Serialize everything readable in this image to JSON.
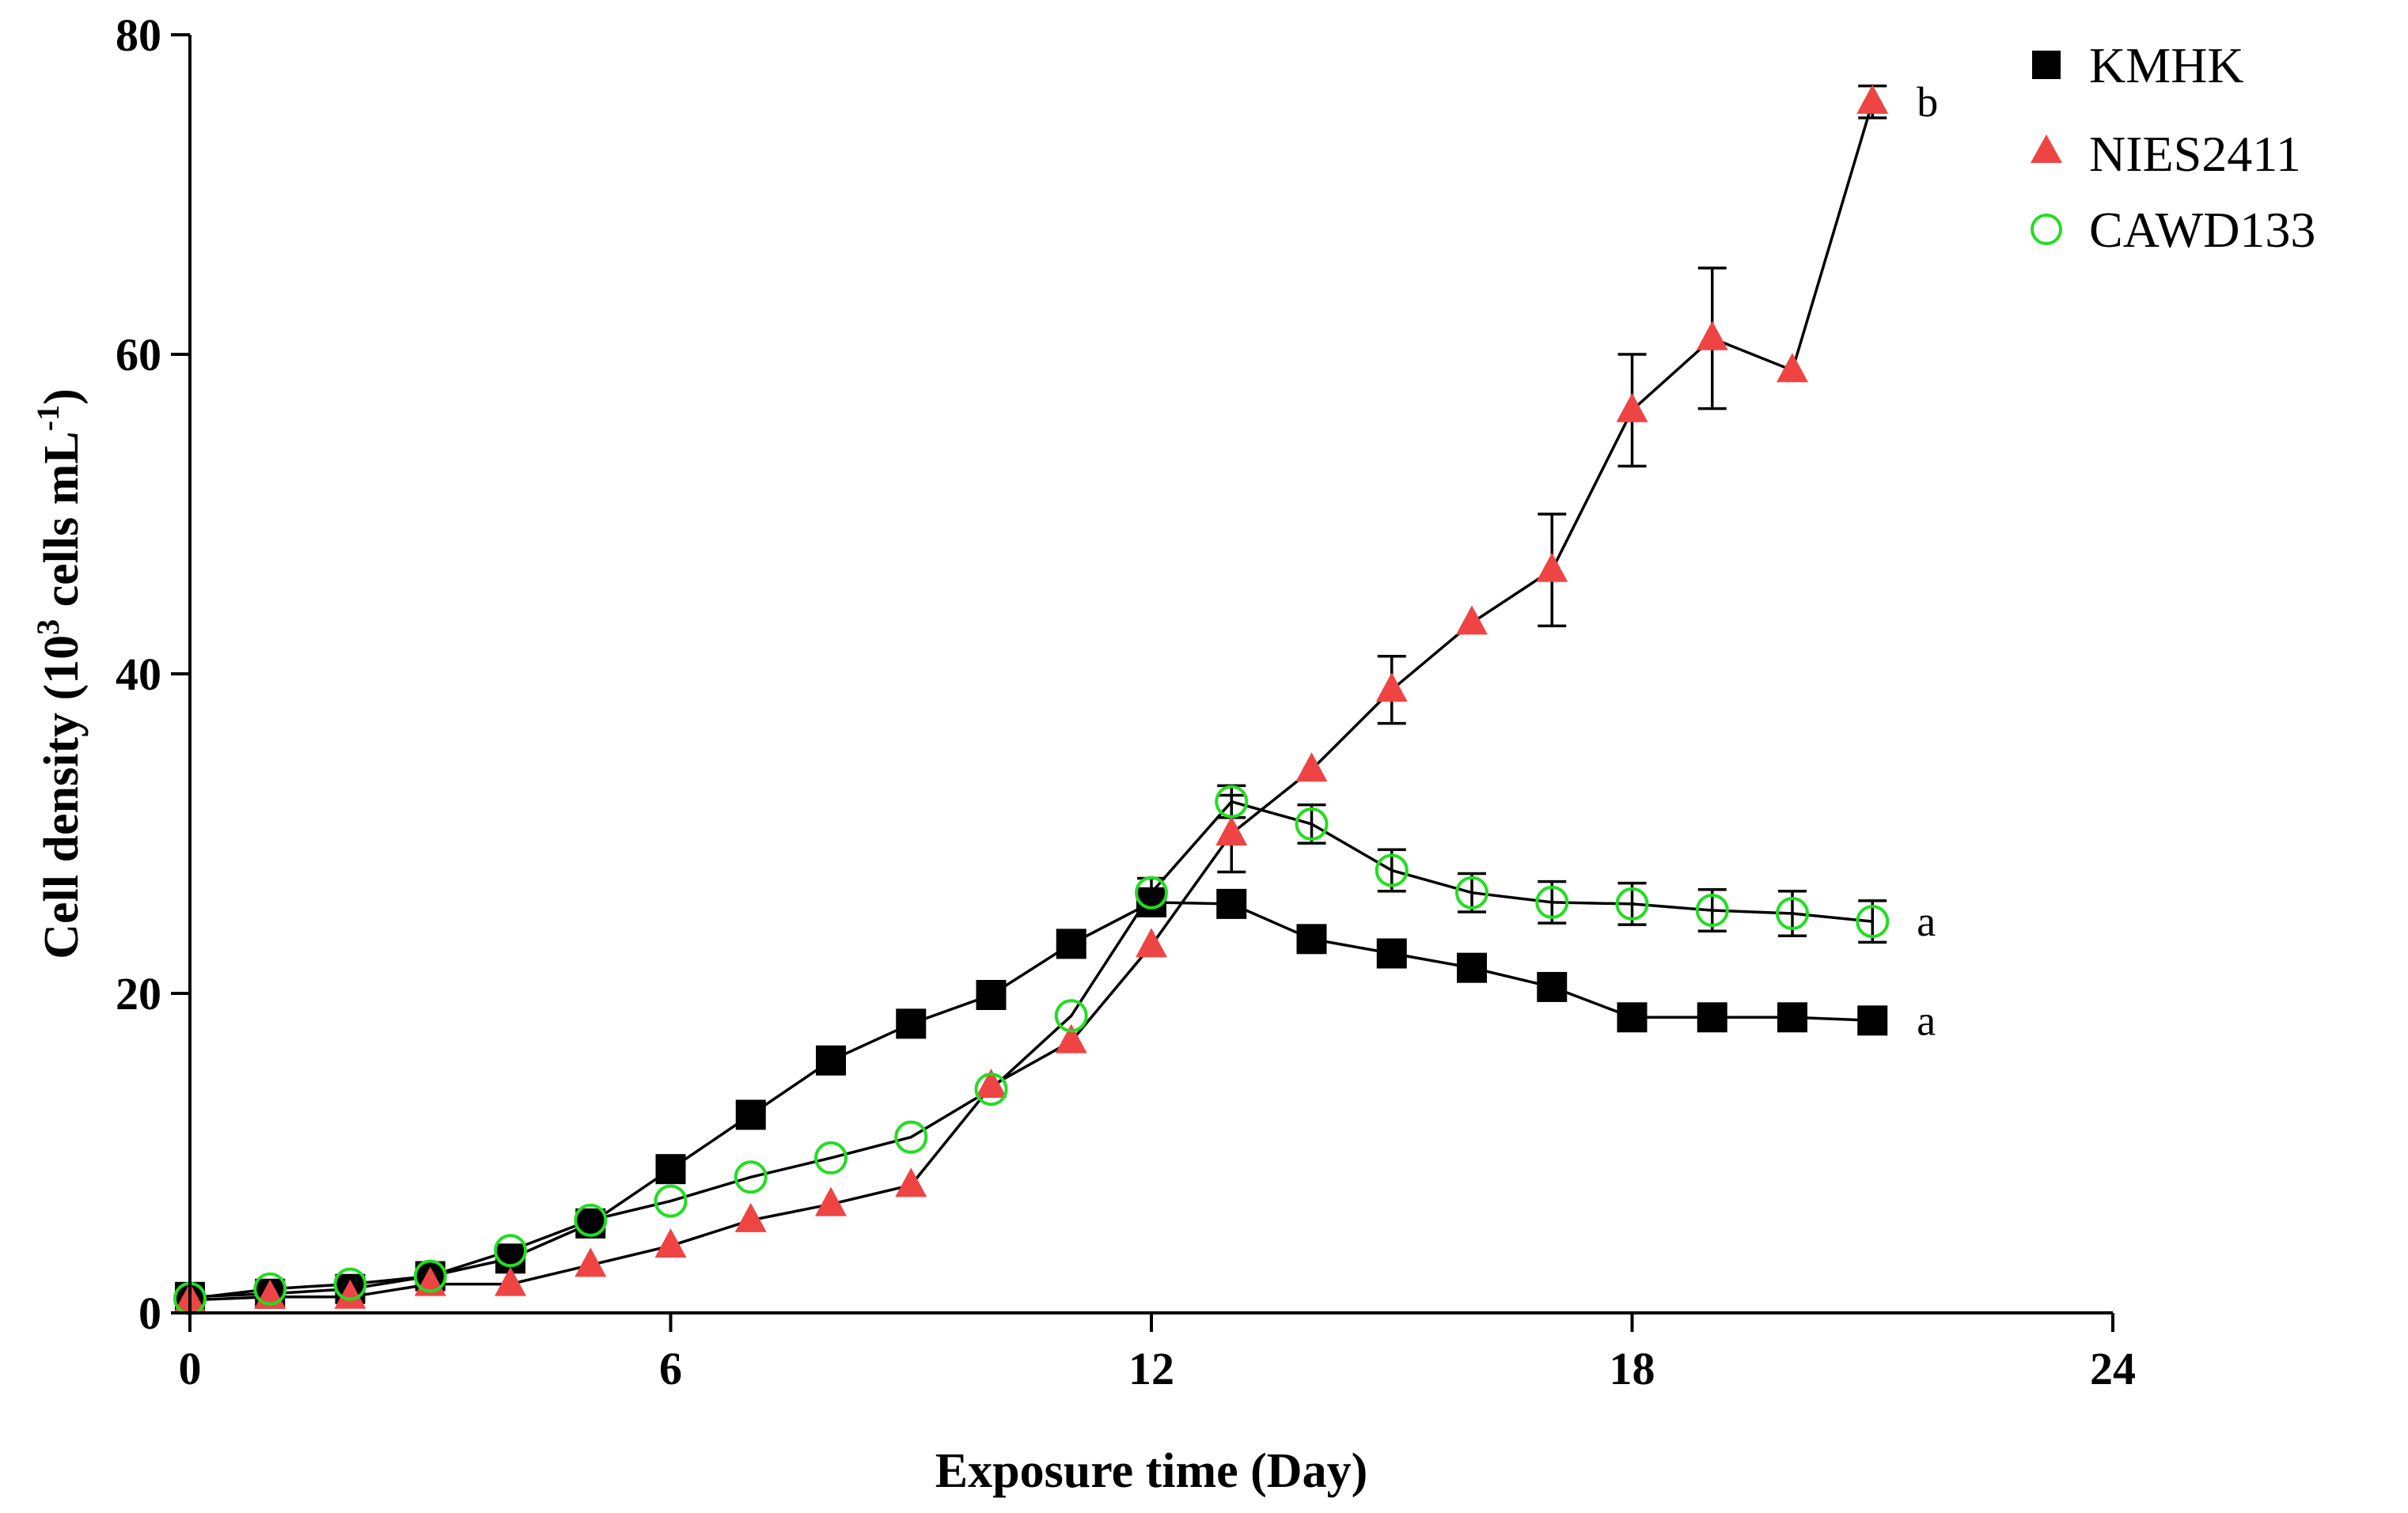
{
  "chart_data": {
    "type": "line",
    "title": "",
    "xlabel": "Exposure time (Day)",
    "ylabel": {
      "prefix": "Cell density (10",
      "sup1": "3",
      "middle": " cells mL",
      "sup2": "-1",
      "suffix": ")"
    },
    "xlim": [
      0,
      24
    ],
    "ylim": [
      0,
      80
    ],
    "xticks": [
      0,
      6,
      12,
      18,
      24
    ],
    "yticks": [
      0,
      20,
      40,
      60,
      80
    ],
    "grid": false,
    "legend_position": "top-right",
    "series": [
      {
        "name": "KMHK",
        "marker": "square",
        "color": "#000000",
        "fill": "#000000",
        "x": [
          0,
          1,
          2,
          3,
          4,
          5,
          6,
          7,
          8,
          9,
          10,
          11,
          12,
          13,
          14,
          15,
          16,
          17,
          18,
          19,
          20,
          21
        ],
        "y": [
          1.0,
          1.2,
          1.5,
          2.3,
          3.4,
          5.6,
          9.0,
          12.4,
          15.8,
          18.1,
          19.9,
          23.1,
          25.7,
          25.6,
          23.4,
          22.5,
          21.6,
          20.4,
          18.5,
          18.5,
          18.5,
          18.3
        ],
        "err": [
          0,
          0,
          0,
          0,
          0,
          0,
          0,
          0,
          0,
          0,
          0,
          0,
          0,
          0,
          0,
          0,
          0,
          0,
          0,
          0,
          0,
          0
        ],
        "end_label": "a"
      },
      {
        "name": "NIES2411",
        "marker": "triangle",
        "color": "#ef4444",
        "fill": "#ef4444",
        "x": [
          0,
          1,
          2,
          3,
          4,
          5,
          6,
          7,
          8,
          9,
          10,
          11,
          12,
          13,
          14,
          15,
          16,
          17,
          18,
          19,
          20,
          21
        ],
        "y": [
          0.8,
          1.0,
          1.0,
          1.8,
          1.8,
          3.0,
          4.2,
          5.8,
          6.8,
          8.0,
          14.2,
          17.0,
          23.0,
          30.0,
          34.0,
          39.0,
          43.2,
          46.5,
          56.5,
          61.0,
          59.0,
          75.8
        ],
        "err": [
          0,
          0,
          0,
          0,
          0,
          0,
          0,
          0,
          0,
          0,
          0,
          0,
          0,
          2.4,
          0,
          2.1,
          0,
          3.5,
          3.5,
          4.4,
          0,
          1.0
        ],
        "end_label": "b"
      },
      {
        "name": "CAWD133",
        "marker": "circle-open",
        "color": "#22dd22",
        "fill": "none",
        "x": [
          0,
          1,
          2,
          3,
          4,
          5,
          6,
          7,
          8,
          9,
          10,
          11,
          12,
          13,
          14,
          15,
          16,
          17,
          18,
          19,
          20,
          21
        ],
        "y": [
          0.9,
          1.5,
          1.8,
          2.3,
          3.9,
          5.8,
          7.0,
          8.5,
          9.7,
          11.0,
          14.0,
          18.6,
          26.3,
          32.0,
          30.6,
          27.7,
          26.3,
          25.7,
          25.6,
          25.2,
          25.0,
          24.5
        ],
        "err": [
          0,
          0,
          0,
          0,
          0,
          0,
          0,
          0,
          0,
          0,
          0,
          0,
          0.9,
          1.0,
          1.2,
          1.3,
          1.2,
          1.3,
          1.3,
          1.3,
          1.4,
          1.3
        ],
        "end_label": "a"
      }
    ]
  }
}
